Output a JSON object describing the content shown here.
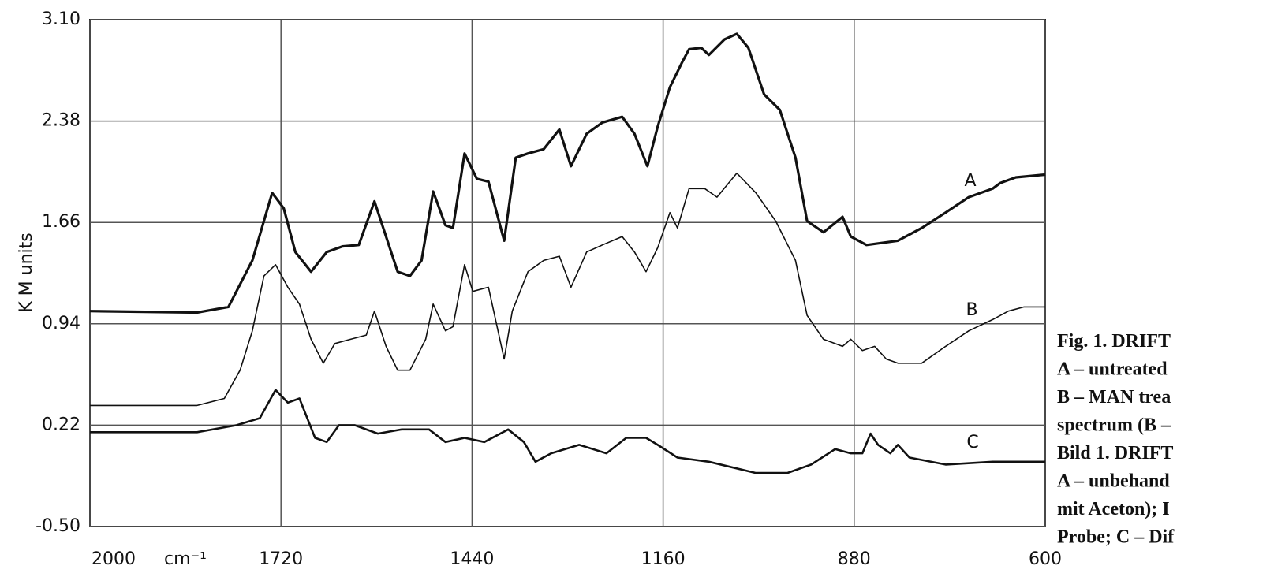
{
  "chart_data": {
    "type": "line",
    "y_label": "K M units",
    "x_label": "cm⁻¹",
    "xlim": [
      2000,
      600
    ],
    "xticks": [
      2000,
      1720,
      1440,
      1160,
      880,
      600
    ],
    "ylim": [
      -0.5,
      3.1
    ],
    "yticks": [
      {
        "value": -0.5,
        "label": "-0.50"
      },
      0.22,
      0.94,
      1.66,
      2.38,
      {
        "value": 3.1,
        "label": "3.10"
      }
    ],
    "grid": true,
    "series": [
      {
        "name": "A",
        "color": "#111111",
        "x": [
          2000,
          1843,
          1797,
          1762,
          1733,
          1716,
          1699,
          1676,
          1653,
          1630,
          1606,
          1583,
          1566,
          1549,
          1531,
          1514,
          1497,
          1479,
          1468,
          1451,
          1433,
          1416,
          1393,
          1376,
          1358,
          1335,
          1312,
          1295,
          1272,
          1249,
          1220,
          1202,
          1183,
          1168,
          1150,
          1133,
          1122,
          1104,
          1093,
          1070,
          1052,
          1035,
          1012,
          989,
          966,
          949,
          925,
          897,
          885,
          862,
          816,
          781,
          746,
          712,
          677,
          666,
          643,
          600
        ],
        "values": [
          1.03,
          1.02,
          1.06,
          1.39,
          1.87,
          1.76,
          1.45,
          1.31,
          1.45,
          1.49,
          1.5,
          1.81,
          1.56,
          1.31,
          1.28,
          1.39,
          1.88,
          1.64,
          1.62,
          2.15,
          1.97,
          1.95,
          1.53,
          2.12,
          2.15,
          2.18,
          2.32,
          2.06,
          2.29,
          2.37,
          2.41,
          2.29,
          2.06,
          2.34,
          2.62,
          2.79,
          2.89,
          2.9,
          2.85,
          2.96,
          3.0,
          2.9,
          2.57,
          2.46,
          2.12,
          1.67,
          1.59,
          1.7,
          1.56,
          1.5,
          1.53,
          1.62,
          1.73,
          1.84,
          1.9,
          1.94,
          1.98,
          2.0
        ]
      },
      {
        "name": "B",
        "color": "#111111",
        "x": [
          2000,
          1843,
          1803,
          1780,
          1762,
          1745,
          1728,
          1710,
          1693,
          1676,
          1658,
          1641,
          1618,
          1595,
          1583,
          1566,
          1549,
          1531,
          1508,
          1497,
          1479,
          1468,
          1451,
          1439,
          1416,
          1393,
          1381,
          1358,
          1335,
          1312,
          1295,
          1272,
          1249,
          1220,
          1202,
          1185,
          1168,
          1150,
          1139,
          1122,
          1099,
          1081,
          1052,
          1024,
          995,
          966,
          949,
          925,
          897,
          885,
          868,
          850,
          833,
          816,
          781,
          746,
          712,
          677,
          654,
          631,
          600
        ],
        "values": [
          0.36,
          0.36,
          0.41,
          0.61,
          0.89,
          1.28,
          1.36,
          1.2,
          1.08,
          0.83,
          0.66,
          0.8,
          0.83,
          0.86,
          1.03,
          0.78,
          0.61,
          0.61,
          0.83,
          1.08,
          0.89,
          0.92,
          1.36,
          1.17,
          1.2,
          0.69,
          1.03,
          1.31,
          1.39,
          1.42,
          1.2,
          1.45,
          1.5,
          1.56,
          1.45,
          1.31,
          1.48,
          1.73,
          1.62,
          1.9,
          1.9,
          1.84,
          2.01,
          1.87,
          1.67,
          1.39,
          1.0,
          0.83,
          0.78,
          0.83,
          0.75,
          0.78,
          0.69,
          0.66,
          0.66,
          0.78,
          0.89,
          0.97,
          1.03,
          1.06,
          1.06
        ]
      },
      {
        "name": "C",
        "color": "#111111",
        "x": [
          2000,
          1843,
          1785,
          1751,
          1728,
          1710,
          1693,
          1670,
          1653,
          1635,
          1612,
          1578,
          1543,
          1503,
          1479,
          1451,
          1422,
          1387,
          1364,
          1347,
          1324,
          1283,
          1243,
          1214,
          1185,
          1168,
          1139,
          1093,
          1024,
          978,
          943,
          908,
          885,
          868,
          856,
          845,
          827,
          816,
          799,
          746,
          677,
          600
        ],
        "values": [
          0.17,
          0.17,
          0.22,
          0.27,
          0.47,
          0.38,
          0.41,
          0.13,
          0.1,
          0.22,
          0.22,
          0.16,
          0.19,
          0.19,
          0.1,
          0.13,
          0.1,
          0.19,
          0.1,
          -0.04,
          0.02,
          0.08,
          0.02,
          0.13,
          0.13,
          0.08,
          -0.01,
          -0.04,
          -0.12,
          -0.12,
          -0.06,
          0.05,
          0.02,
          0.02,
          0.16,
          0.08,
          0.02,
          0.08,
          -0.01,
          -0.06,
          -0.04,
          -0.04
        ]
      }
    ],
    "caption": [
      "Fig. 1.  DRIFT",
      "A – untreated",
      "B – MAN trea",
      "spectrum (B –",
      "Bild 1.  DRIFT",
      "A – unbehand",
      "mit Aceton); I",
      "Probe; C – Dif"
    ]
  }
}
